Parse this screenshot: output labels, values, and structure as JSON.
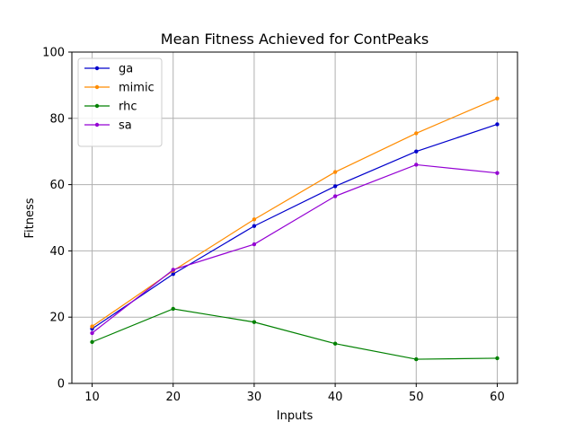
{
  "chart_data": {
    "type": "line",
    "title": "Mean Fitness Achieved for ContPeaks",
    "xlabel": "Inputs",
    "ylabel": "Fitness",
    "x": [
      10,
      20,
      30,
      40,
      50,
      60
    ],
    "xlim": [
      7.5,
      62.5
    ],
    "ylim": [
      0,
      100
    ],
    "xticks": [
      10,
      20,
      30,
      40,
      50,
      60
    ],
    "yticks": [
      0,
      20,
      40,
      60,
      80,
      100
    ],
    "grid": true,
    "legend_position": "upper-left",
    "series": [
      {
        "name": "ga",
        "color": "#0000cc",
        "values": [
          16.5,
          33.0,
          47.5,
          59.5,
          70.0,
          78.2
        ]
      },
      {
        "name": "mimic",
        "color": "#ff8c00",
        "values": [
          17.2,
          34.0,
          49.5,
          63.8,
          75.5,
          86.0
        ]
      },
      {
        "name": "rhc",
        "color": "#008000",
        "values": [
          12.5,
          22.5,
          18.5,
          12.0,
          7.3,
          7.6
        ]
      },
      {
        "name": "sa",
        "color": "#9400d3",
        "values": [
          15.2,
          34.3,
          42.0,
          56.5,
          66.0,
          63.5
        ]
      }
    ]
  }
}
